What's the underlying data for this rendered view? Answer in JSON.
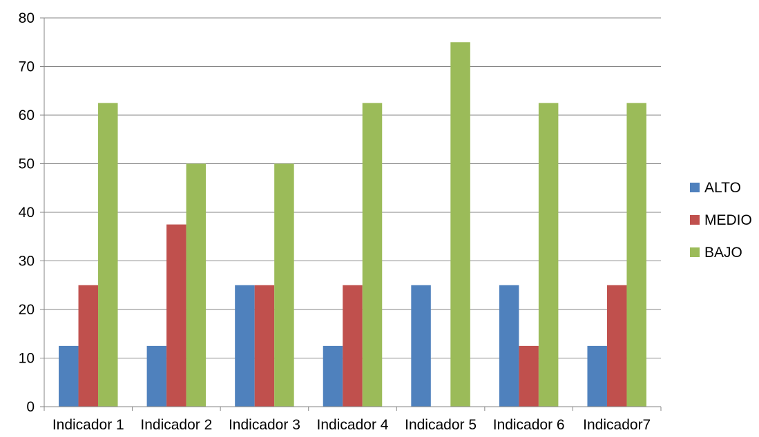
{
  "chart_data": {
    "type": "bar",
    "categories": [
      "Indicador 1",
      "Indicador 2",
      "Indicador 3",
      "Indicador 4",
      "Indicador 5",
      "Indicador 6",
      "Indicador7"
    ],
    "series": [
      {
        "name": "ALTO",
        "color": "#4f81bd",
        "values": [
          12.5,
          12.5,
          25,
          12.5,
          25,
          25,
          12.5
        ]
      },
      {
        "name": "MEDIO",
        "color": "#c0504d",
        "values": [
          25,
          37.5,
          25,
          25,
          0,
          12.5,
          25
        ]
      },
      {
        "name": "BAJO",
        "color": "#9bbb59",
        "values": [
          62.5,
          50,
          50,
          62.5,
          75,
          62.5,
          62.5
        ]
      }
    ],
    "title": "",
    "xlabel": "",
    "ylabel": "",
    "ylim": [
      0,
      80
    ],
    "yticks": [
      0,
      10,
      20,
      30,
      40,
      50,
      60,
      70,
      80
    ],
    "grid": true,
    "legend_position": "right",
    "gridline_color": "#868686",
    "axis_color": "#868686"
  }
}
